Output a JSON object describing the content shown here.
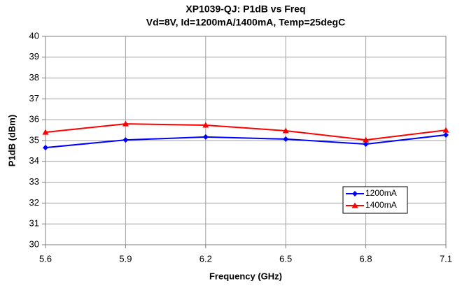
{
  "chart_data": {
    "type": "line",
    "title": "XP1039-QJ: P1dB vs Freq",
    "subtitle": "Vd=8V, Id=1200mA/1400mA, Temp=25degC",
    "x_label": "Frequency (GHz)",
    "y_label": "P1dB (dBm)",
    "x": [
      5.6,
      5.9,
      6.2,
      6.5,
      6.8,
      7.1
    ],
    "series": [
      {
        "name": "1200mA",
        "color": "#0000ff",
        "marker": "diamond",
        "values": [
          34.66,
          35.03,
          35.17,
          35.07,
          34.83,
          35.27
        ]
      },
      {
        "name": "1400mA",
        "color": "#ff0000",
        "marker": "triangle",
        "values": [
          35.4,
          35.8,
          35.74,
          35.47,
          35.03,
          35.5
        ]
      }
    ],
    "xlim": [
      5.6,
      7.1
    ],
    "xticks": [
      5.6,
      5.9,
      6.2,
      6.5,
      6.8,
      7.1
    ],
    "ylim": [
      30,
      40
    ],
    "yticks": [
      30,
      31,
      32,
      33,
      34,
      35,
      36,
      37,
      38,
      39,
      40
    ],
    "grid": true,
    "legend": "lower right"
  }
}
